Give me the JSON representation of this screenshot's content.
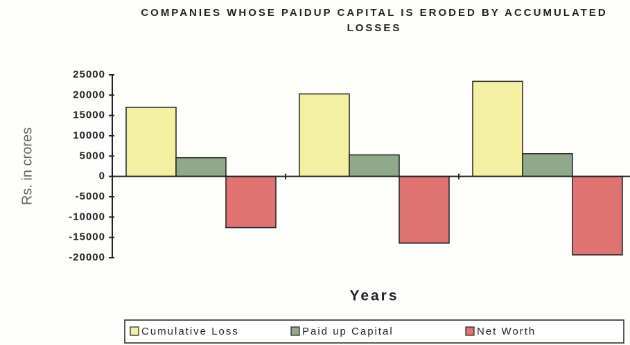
{
  "chart_data": {
    "type": "bar",
    "title": "COMPANIES WHOSE PAIDUP CAPITAL IS ERODED BY ACCUMULATED LOSSES",
    "x_label": "Years",
    "y_label": "Rs. in crores",
    "categories": [
      null,
      null,
      null
    ],
    "series": [
      {
        "name": "Cumulative Loss",
        "color": "#f4f0a2",
        "values": [
          17000,
          20300,
          23400
        ]
      },
      {
        "name": "Paid up Capital",
        "color": "#8fa98a",
        "values": [
          4600,
          5300,
          5600
        ]
      },
      {
        "name": "Net Worth",
        "color": "#e07272",
        "values": [
          -12600,
          -16400,
          -19300
        ]
      }
    ],
    "ylim": [
      -20000,
      25000
    ],
    "yticks": [
      -20000,
      -15000,
      -10000,
      -5000,
      0,
      5000,
      10000,
      15000,
      20000,
      25000
    ],
    "legend": "bottom"
  }
}
